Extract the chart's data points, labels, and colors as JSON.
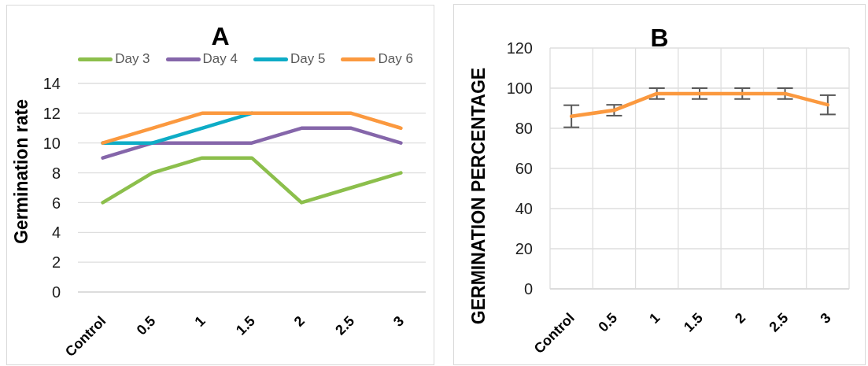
{
  "chart_data": [
    {
      "type": "line",
      "title": "A",
      "ylabel": "Germination rate",
      "categories": [
        "Control",
        "0.5",
        "1",
        "1.5",
        "2",
        "2.5",
        "3"
      ],
      "series": [
        {
          "name": "Day 3",
          "color": "#8cbf4c",
          "values": [
            6,
            8,
            9,
            9,
            6,
            7,
            8
          ]
        },
        {
          "name": "Day 4",
          "color": "#8566aa",
          "values": [
            9,
            10,
            10,
            10,
            11,
            11,
            10
          ]
        },
        {
          "name": "Day 5",
          "color": "#0eacc6",
          "values": [
            10,
            10,
            11,
            12,
            null,
            null,
            null
          ]
        },
        {
          "name": "Day 6",
          "color": "#fb993f",
          "values": [
            10,
            11,
            12,
            12,
            12,
            12,
            11
          ]
        }
      ],
      "ylim": [
        0,
        14
      ],
      "yticks": [
        0,
        2,
        4,
        6,
        8,
        10,
        12,
        14
      ],
      "grid": "y",
      "legend": "top",
      "marker": "none",
      "line_style": "solid"
    },
    {
      "type": "line",
      "title": "B",
      "ylabel": "GERMINATION PERCENTAGE",
      "categories": [
        "Control",
        "0.5",
        "1",
        "1.5",
        "2",
        "2.5",
        "3"
      ],
      "series": [
        {
          "color": "#fb993f",
          "values": [
            86,
            89,
            97.3,
            97.3,
            97.3,
            97.3,
            91.7
          ],
          "errors": [
            5.5,
            2.7,
            2.7,
            2.7,
            2.7,
            2.7,
            4.8
          ]
        }
      ],
      "ylim": [
        0,
        120
      ],
      "yticks": [
        0,
        20,
        40,
        60,
        80,
        100,
        120
      ],
      "grid": true,
      "marker": "none",
      "line_style": "solid"
    }
  ]
}
